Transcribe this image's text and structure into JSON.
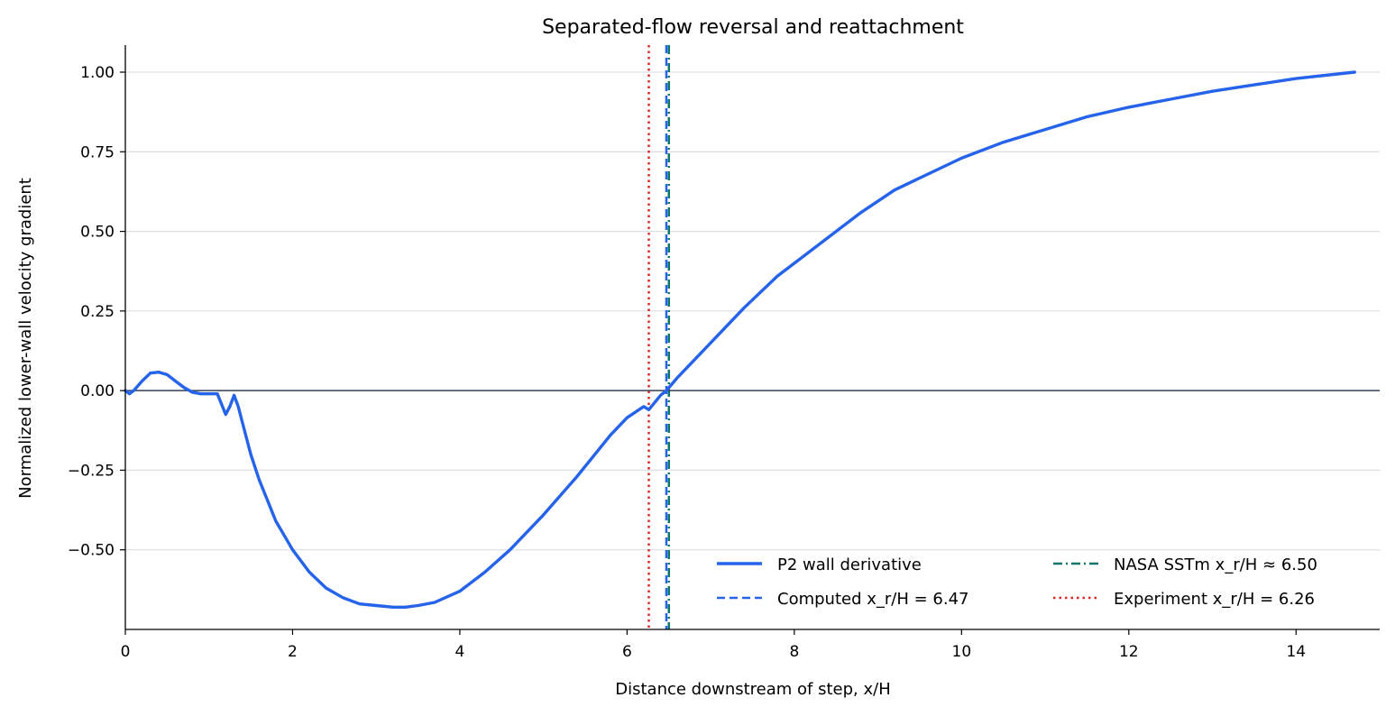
{
  "chart_data": {
    "type": "line",
    "title": "Separated-flow reversal and reattachment",
    "xlabel": "Distance downstream of step, x/H",
    "ylabel": "Normalized lower-wall velocity gradient",
    "xlim": [
      0,
      15
    ],
    "ylim": [
      -0.75,
      1.085
    ],
    "x_ticks": [
      0,
      2,
      4,
      6,
      8,
      10,
      12,
      14
    ],
    "x_tick_labels": [
      "0",
      "2",
      "4",
      "6",
      "8",
      "10",
      "12",
      "14"
    ],
    "y_ticks": [
      -0.5,
      -0.25,
      0.0,
      0.25,
      0.5,
      0.75,
      1.0
    ],
    "y_tick_labels": [
      "−0.50",
      "−0.25",
      "0.00",
      "0.25",
      "0.50",
      "0.75",
      "1.00"
    ],
    "grid": "horizontal",
    "legend_position": "lower-right",
    "series": [
      {
        "name": "P2 wall derivative",
        "style": "solid",
        "color": "#2563eb",
        "x": [
          0.0,
          0.05,
          0.1,
          0.2,
          0.3,
          0.4,
          0.5,
          0.6,
          0.7,
          0.8,
          0.9,
          1.0,
          1.1,
          1.2,
          1.25,
          1.3,
          1.35,
          1.4,
          1.5,
          1.6,
          1.8,
          2.0,
          2.2,
          2.4,
          2.6,
          2.8,
          3.0,
          3.2,
          3.35,
          3.5,
          3.7,
          4.0,
          4.3,
          4.6,
          5.0,
          5.4,
          5.8,
          6.0,
          6.2,
          6.26,
          6.4,
          6.47,
          6.6,
          7.0,
          7.4,
          7.8,
          8.0,
          8.4,
          8.8,
          9.2,
          9.6,
          10.0,
          10.5,
          11.0,
          11.5,
          12.0,
          12.5,
          13.0,
          13.5,
          14.0,
          14.7
        ],
        "values": [
          0.0,
          -0.01,
          0.0,
          0.03,
          0.055,
          0.058,
          0.05,
          0.03,
          0.01,
          -0.005,
          -0.01,
          -0.01,
          -0.01,
          -0.075,
          -0.05,
          -0.015,
          -0.05,
          -0.1,
          -0.2,
          -0.28,
          -0.41,
          -0.5,
          -0.57,
          -0.62,
          -0.65,
          -0.67,
          -0.675,
          -0.68,
          -0.68,
          -0.675,
          -0.665,
          -0.63,
          -0.57,
          -0.5,
          -0.39,
          -0.27,
          -0.14,
          -0.085,
          -0.05,
          -0.06,
          -0.015,
          0.0,
          0.04,
          0.15,
          0.26,
          0.36,
          0.4,
          0.48,
          0.56,
          0.63,
          0.68,
          0.73,
          0.78,
          0.82,
          0.86,
          0.89,
          0.915,
          0.94,
          0.96,
          0.98,
          1.0
        ]
      }
    ],
    "reference_lines": [
      {
        "name": "Computed x_r/H = 6.47",
        "x": 6.47,
        "style": "dashed",
        "color": "#2563eb"
      },
      {
        "name": "NASA SSTm x_r/H ≈ 6.50",
        "x": 6.5,
        "style": "dashdot",
        "color": "#0f766e"
      },
      {
        "name": "Experiment x_r/H = 6.26",
        "x": 6.26,
        "style": "dotted",
        "color": "#dc2626"
      },
      {
        "name": "",
        "y": 0.0,
        "style": "solid",
        "color": "#334155",
        "role": "zero-line"
      }
    ],
    "legend": [
      {
        "label": "P2 wall derivative",
        "style": "solid",
        "color": "#2563eb"
      },
      {
        "label": "NASA SSTm x_r/H ≈ 6.50",
        "style": "dashdot",
        "color": "#0f766e"
      },
      {
        "label": "Computed x_r/H = 6.47",
        "style": "dashed",
        "color": "#2563eb"
      },
      {
        "label": "Experiment x_r/H = 6.26",
        "style": "dotted",
        "color": "#dc2626"
      }
    ]
  }
}
